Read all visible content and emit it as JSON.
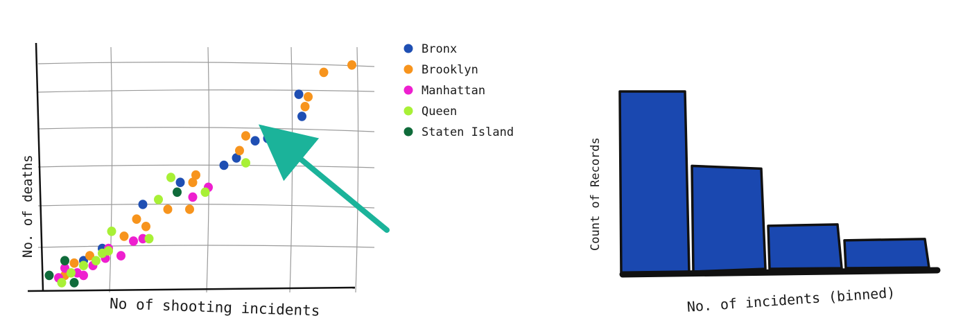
{
  "chart_data": [
    {
      "type": "scatter",
      "title": "",
      "xlabel": "No of shooting incidents",
      "ylabel": "No. of deaths",
      "xlim": [
        0,
        10
      ],
      "ylim": [
        0,
        10
      ],
      "grid": true,
      "legend_position": "right",
      "annotations": [
        {
          "type": "arrow",
          "points_to": "Bronx cluster near x 7.3, y 6.1"
        }
      ],
      "series": [
        {
          "name": "Bronx",
          "color": "#1f4fb3",
          "points": [
            [
              1.3,
              1.1
            ],
            [
              1.9,
              1.6
            ],
            [
              3.2,
              3.4
            ],
            [
              4.4,
              4.3
            ],
            [
              5.8,
              5.0
            ],
            [
              6.2,
              5.3
            ],
            [
              6.8,
              6.0
            ],
            [
              7.2,
              6.1
            ],
            [
              8.3,
              7.0
            ],
            [
              8.2,
              7.9
            ]
          ]
        },
        {
          "name": "Brooklyn",
          "color": "#f7941d",
          "points": [
            [
              0.7,
              0.5
            ],
            [
              1.0,
              1.0
            ],
            [
              1.5,
              1.3
            ],
            [
              2.6,
              2.1
            ],
            [
              3.0,
              2.8
            ],
            [
              3.3,
              2.5
            ],
            [
              4.0,
              3.2
            ],
            [
              4.7,
              3.2
            ],
            [
              4.8,
              4.3
            ],
            [
              4.9,
              4.6
            ],
            [
              6.3,
              5.6
            ],
            [
              6.5,
              6.2
            ],
            [
              8.4,
              7.4
            ],
            [
              8.5,
              7.8
            ],
            [
              9.0,
              8.8
            ],
            [
              9.9,
              9.1
            ]
          ]
        },
        {
          "name": "Manhattan",
          "color": "#ee1fcf",
          "points": [
            [
              0.5,
              0.4
            ],
            [
              0.7,
              0.8
            ],
            [
              1.1,
              0.6
            ],
            [
              1.3,
              0.5
            ],
            [
              1.6,
              0.9
            ],
            [
              2.0,
              1.2
            ],
            [
              2.1,
              1.6
            ],
            [
              2.5,
              1.3
            ],
            [
              2.9,
              1.9
            ],
            [
              3.2,
              2.0
            ],
            [
              4.8,
              3.7
            ],
            [
              5.3,
              4.1
            ]
          ]
        },
        {
          "name": "Queen",
          "color": "#a8f036",
          "points": [
            [
              0.6,
              0.2
            ],
            [
              0.9,
              0.6
            ],
            [
              1.3,
              0.9
            ],
            [
              1.7,
              1.1
            ],
            [
              1.9,
              1.4
            ],
            [
              2.1,
              1.5
            ],
            [
              2.2,
              2.3
            ],
            [
              3.4,
              2.0
            ],
            [
              3.7,
              3.6
            ],
            [
              4.1,
              4.5
            ],
            [
              5.2,
              3.9
            ],
            [
              6.5,
              5.1
            ]
          ]
        },
        {
          "name": "Staten Island",
          "color": "#0f6b3a",
          "points": [
            [
              0.2,
              0.5
            ],
            [
              0.7,
              1.1
            ],
            [
              1.0,
              0.2
            ],
            [
              4.3,
              3.9
            ]
          ]
        }
      ]
    },
    {
      "type": "bar",
      "title": "",
      "xlabel": "No. of incidents (binned)",
      "ylabel": "Count of Records",
      "categories": [
        "",
        "",
        "",
        ""
      ],
      "values": [
        100,
        59,
        26,
        18
      ],
      "ylim": [
        0,
        100
      ],
      "color": "#1a48b0",
      "grid": false
    }
  ]
}
